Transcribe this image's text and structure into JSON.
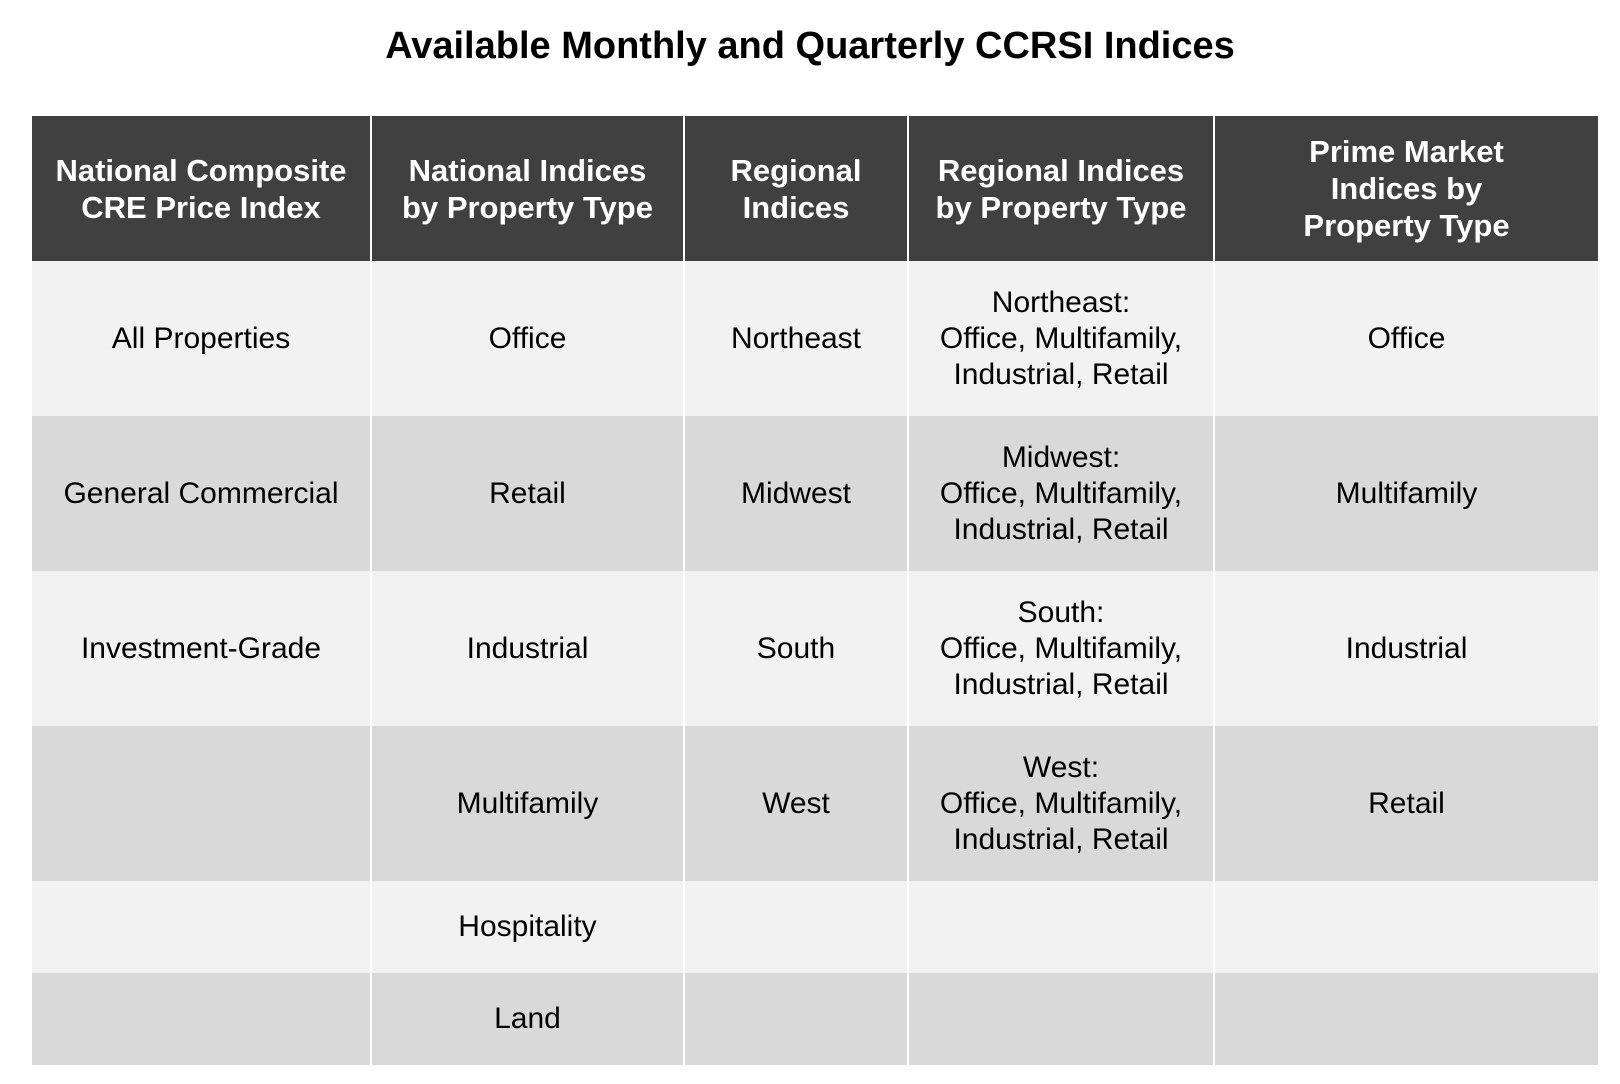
{
  "title": "Available Monthly and Quarterly CCRSI Indices",
  "headers": [
    [
      "National Composite",
      "CRE Price Index"
    ],
    [
      "National Indices",
      "by Property Type"
    ],
    [
      "Regional",
      "Indices"
    ],
    [
      "Regional Indices",
      "by Property Type"
    ],
    [
      "Prime Market",
      "Indices by",
      "Property Type"
    ]
  ],
  "rows": [
    [
      [
        "All Properties"
      ],
      [
        "Office"
      ],
      [
        "Northeast"
      ],
      [
        "Northeast:",
        "Office, Multifamily,",
        "Industrial, Retail"
      ],
      [
        "Office"
      ]
    ],
    [
      [
        "General Commercial"
      ],
      [
        "Retail"
      ],
      [
        "Midwest"
      ],
      [
        "Midwest:",
        "Office, Multifamily,",
        "Industrial, Retail"
      ],
      [
        "Multifamily"
      ]
    ],
    [
      [
        "Investment-Grade"
      ],
      [
        "Industrial"
      ],
      [
        "South"
      ],
      [
        "South:",
        "Office, Multifamily,",
        "Industrial, Retail"
      ],
      [
        "Industrial"
      ]
    ],
    [
      [
        ""
      ],
      [
        "Multifamily"
      ],
      [
        "West"
      ],
      [
        "West:",
        "Office, Multifamily,",
        "Industrial, Retail"
      ],
      [
        "Retail"
      ]
    ],
    [
      [
        ""
      ],
      [
        "Hospitality"
      ],
      [
        ""
      ],
      [
        ""
      ],
      [
        ""
      ]
    ],
    [
      [
        ""
      ],
      [
        "Land"
      ],
      [
        ""
      ],
      [
        ""
      ],
      [
        ""
      ]
    ]
  ],
  "colors": {
    "header_background": "#404040",
    "header_text": "#ffffff",
    "row_light": "#f2f2f2",
    "row_dark": "#d9d9d9"
  }
}
